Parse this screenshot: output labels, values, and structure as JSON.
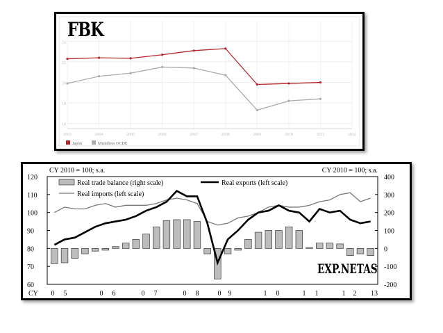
{
  "labels": {
    "fbk": "FBK",
    "exp_netas": "EXP.NETAS"
  },
  "chart_data": [
    {
      "type": "line",
      "x": [
        "2003",
        "2004",
        "2005",
        "2006",
        "2007",
        "2008",
        "2009",
        "2010",
        "2011",
        "2012"
      ],
      "y_ticks": [
        "16",
        "18",
        "20",
        "22",
        "24"
      ],
      "ylim": [
        15.5,
        26
      ],
      "series": [
        {
          "name": "Japón",
          "color": "#b3262a",
          "values": [
            22.3,
            22.4,
            22.35,
            22.7,
            23.1,
            23.3,
            19.8,
            19.9,
            20.0,
            null
          ]
        },
        {
          "name": "Miembros OCDE",
          "color": "#aaaaaa",
          "values": [
            19.9,
            20.6,
            20.9,
            21.5,
            21.4,
            20.7,
            17.3,
            18.2,
            18.4,
            null
          ]
        }
      ],
      "legend_position": "bottom-left",
      "grid": true
    },
    {
      "type": "line",
      "left_axis_label": "CY 2010 = 100; s.a.",
      "right_axis_label": "CY 2010 = 100; s.a.",
      "left_ylim": [
        60,
        120
      ],
      "left_ticks": [
        "60",
        "70",
        "80",
        "90",
        "100",
        "110",
        "120"
      ],
      "right_ylim": [
        -200,
        400
      ],
      "right_ticks": [
        "-200",
        "-100",
        "0",
        "100",
        "200",
        "300",
        "400"
      ],
      "x_axis_title": "CY",
      "x_tick_labels": [
        "0",
        "5",
        "0",
        "6",
        "0",
        "7",
        "0",
        "8",
        "0",
        "9",
        "1",
        "0",
        "1",
        "1",
        "1",
        "2",
        "13"
      ],
      "series": [
        {
          "name": "Real trade balance (right scale)",
          "type": "bar",
          "color": "#bdbdbd",
          "axis": "right",
          "values": [
            -85,
            -80,
            -55,
            -30,
            -15,
            -10,
            10,
            30,
            50,
            80,
            120,
            155,
            160,
            160,
            150,
            -30,
            -170,
            -30,
            -10,
            50,
            90,
            100,
            100,
            120,
            100,
            5,
            30,
            30,
            25,
            -40,
            -30,
            -40
          ]
        },
        {
          "name": "Real exports (left scale)",
          "type": "line",
          "color": "#000000",
          "axis": "left",
          "values": [
            82,
            85,
            86,
            89,
            92,
            94,
            95,
            96,
            98,
            101,
            103,
            106,
            112,
            109,
            109,
            94,
            72,
            85,
            90,
            96,
            100,
            101,
            104,
            101,
            100,
            95,
            102,
            100,
            101,
            96,
            94,
            95
          ]
        },
        {
          "name": "Real imports (left scale)",
          "type": "line",
          "color": "#777777",
          "axis": "left",
          "values": [
            100,
            103,
            102,
            102,
            104,
            105,
            103,
            104,
            104,
            104,
            105,
            107,
            108,
            107,
            105,
            95,
            93,
            94,
            97,
            98,
            100,
            103,
            104,
            103,
            103,
            104,
            106,
            107,
            110,
            111,
            106,
            108
          ]
        }
      ],
      "legend_position": "top-left",
      "grid": false
    }
  ]
}
